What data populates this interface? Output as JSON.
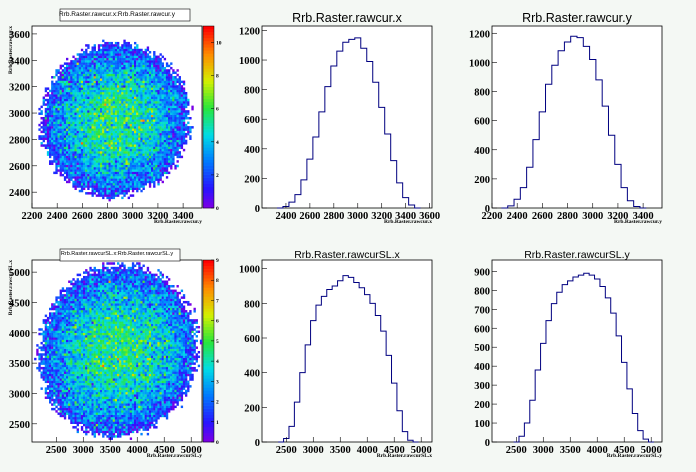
{
  "chart_data": [
    {
      "type": "heatmap",
      "title": "Rrb.Raster.rawcur.x:Rrb.Raster.rawcur.y",
      "xlabel": "Rrb.Raster.rawcur.y",
      "ylabel": "Rrb.Raster.rawcur.x",
      "xlim": [
        2200,
        3550
      ],
      "ylim": [
        2280,
        3660
      ],
      "xticks": [
        "2200",
        "2400",
        "2600",
        "2800",
        "3000",
        "3200",
        "3400"
      ],
      "yticks": [
        "2400",
        "2600",
        "2800",
        "3000",
        "3200",
        "3400",
        "3600"
      ],
      "zticks": [
        "0",
        "2",
        "4",
        "6",
        "8",
        "10"
      ],
      "zmax": 11,
      "ellipse": {
        "cx": 2860,
        "cy": 2950,
        "rx": 620,
        "ry": 600,
        "tilt_deg": 30
      }
    },
    {
      "type": "bar",
      "title": "Rrb.Raster.rawcur.x",
      "xlabel": "Rrb.Raster.rawcur.x",
      "xlim": [
        2200,
        3620
      ],
      "ylim": [
        0,
        1230
      ],
      "xticks": [
        "2400",
        "2600",
        "2800",
        "3000",
        "3200",
        "3400",
        "3600"
      ],
      "yticks": [
        "0",
        "200",
        "400",
        "600",
        "800",
        "1000",
        "1200"
      ],
      "x": [
        2350,
        2400,
        2450,
        2500,
        2550,
        2600,
        2650,
        2700,
        2750,
        2800,
        2850,
        2900,
        2950,
        3000,
        3050,
        3100,
        3150,
        3200,
        3250,
        3300,
        3350,
        3400,
        3450,
        3500
      ],
      "values": [
        0,
        10,
        40,
        90,
        190,
        330,
        480,
        650,
        820,
        960,
        1060,
        1120,
        1140,
        1150,
        1080,
        990,
        850,
        680,
        500,
        320,
        170,
        70,
        20,
        0
      ]
    },
    {
      "type": "bar",
      "title": "Rrb.Raster.rawcur.y",
      "xlabel": "Rrb.Raster.rawcur.y",
      "xlim": [
        2200,
        3550
      ],
      "ylim": [
        0,
        1250
      ],
      "xticks": [
        "2200",
        "2400",
        "2600",
        "2800",
        "3000",
        "3200",
        "3400"
      ],
      "yticks": [
        "0",
        "200",
        "400",
        "600",
        "800",
        "1000",
        "1200"
      ],
      "x": [
        2300,
        2350,
        2400,
        2450,
        2500,
        2550,
        2600,
        2650,
        2700,
        2750,
        2800,
        2850,
        2900,
        2950,
        3000,
        3050,
        3100,
        3150,
        3200,
        3250,
        3300,
        3350,
        3400
      ],
      "values": [
        0,
        15,
        60,
        140,
        280,
        470,
        660,
        850,
        980,
        1080,
        1140,
        1180,
        1170,
        1110,
        1020,
        880,
        700,
        500,
        300,
        140,
        50,
        10,
        0
      ]
    },
    {
      "type": "heatmap",
      "title": "Rrb.Raster.rawcurSL.x:Rrb.Raster.rawcurSL.y",
      "xlabel": "Rrb.Raster.rawcurSL.y",
      "ylabel": "Rrb.Raster.rawcurSL.x",
      "xlim": [
        2050,
        5200
      ],
      "ylim": [
        2200,
        5200
      ],
      "xticks": [
        "2500",
        "3000",
        "3500",
        "4000",
        "4500",
        "5000"
      ],
      "yticks": [
        "2500",
        "3000",
        "3500",
        "4000",
        "4500",
        "5000"
      ],
      "zticks": [
        "0",
        "1",
        "2",
        "3",
        "4",
        "5",
        "6",
        "7",
        "8",
        "9"
      ],
      "zmax": 9,
      "ellipse": {
        "cx": 3650,
        "cy": 3700,
        "rx": 1550,
        "ry": 1450,
        "tilt_deg": 30
      }
    },
    {
      "type": "bar",
      "title": "Rrb.Raster.rawcurSL.x",
      "xlabel": "Rrb.Raster.rawcurSL.x",
      "xlim": [
        2050,
        5200
      ],
      "ylim": [
        0,
        1050
      ],
      "xticks": [
        "2500",
        "3000",
        "3500",
        "4000",
        "4500",
        "5000"
      ],
      "yticks": [
        "0",
        "200",
        "400",
        "600",
        "800",
        "1000"
      ],
      "x": [
        2400,
        2500,
        2600,
        2700,
        2800,
        2900,
        3000,
        3100,
        3200,
        3300,
        3400,
        3500,
        3600,
        3700,
        3800,
        3900,
        4000,
        4100,
        4200,
        4300,
        4400,
        4500,
        4600,
        4700,
        4800,
        4900
      ],
      "values": [
        0,
        20,
        90,
        230,
        400,
        560,
        700,
        790,
        840,
        880,
        900,
        930,
        960,
        950,
        920,
        890,
        850,
        800,
        730,
        640,
        500,
        340,
        180,
        60,
        10,
        0
      ]
    },
    {
      "type": "bar",
      "title": "Rrb.Raster.rawcurSL.y",
      "xlabel": "Rrb.Raster.rawcurSL.y",
      "xlim": [
        2050,
        5200
      ],
      "ylim": [
        0,
        960
      ],
      "xticks": [
        "2500",
        "3000",
        "3500",
        "4000",
        "4500",
        "5000"
      ],
      "yticks": [
        "0",
        "100",
        "200",
        "300",
        "400",
        "500",
        "600",
        "700",
        "800",
        "900"
      ],
      "x": [
        2500,
        2600,
        2700,
        2800,
        2900,
        3000,
        3100,
        3200,
        3300,
        3400,
        3500,
        3600,
        3700,
        3800,
        3900,
        4000,
        4100,
        4200,
        4300,
        4400,
        4500,
        4600,
        4700,
        4800,
        4900,
        5000
      ],
      "values": [
        0,
        30,
        100,
        220,
        380,
        520,
        640,
        730,
        790,
        830,
        850,
        870,
        880,
        890,
        880,
        860,
        820,
        760,
        680,
        560,
        420,
        280,
        150,
        60,
        15,
        0
      ]
    }
  ]
}
